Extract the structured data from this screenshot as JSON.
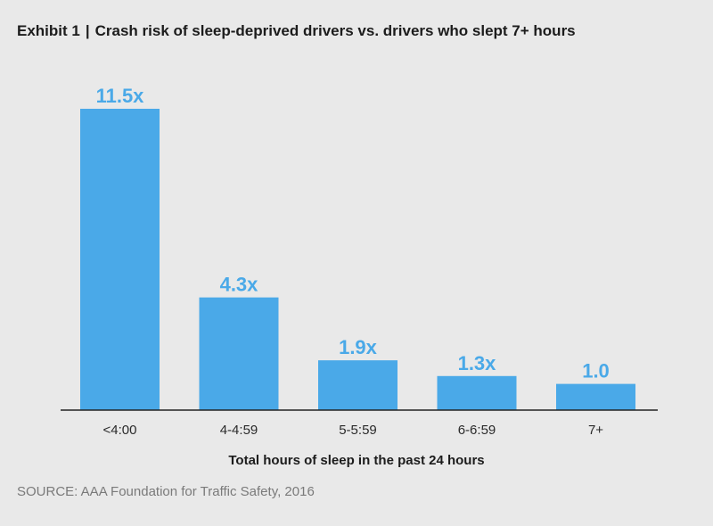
{
  "header": {
    "exhibit": "Exhibit 1",
    "separator": "|",
    "title": "Crash risk of sleep-deprived drivers vs. drivers who slept 7+ hours"
  },
  "footer": {
    "source": "SOURCE: AAA Foundation for Traffic Safety, 2016"
  },
  "colors": {
    "bar": "#4aa9e8",
    "label": "#4aa9e8",
    "axis": "#222222",
    "background": "#e9e9e9"
  },
  "chart_data": {
    "type": "bar",
    "title": "Crash risk of sleep-deprived drivers vs. drivers who slept 7+ hours",
    "xlabel": "Total hours of sleep in the past 24 hours",
    "ylabel": "",
    "categories": [
      "<4:00",
      "4-4:59",
      "5-5:59",
      "6-6:59",
      "7+"
    ],
    "values": [
      11.5,
      4.3,
      1.9,
      1.3,
      1.0
    ],
    "data_labels": [
      "11.5x",
      "4.3x",
      "1.9x",
      "1.3x",
      "1.0"
    ],
    "ylim": [
      0,
      11.5
    ],
    "grid": false,
    "legend": "none"
  }
}
